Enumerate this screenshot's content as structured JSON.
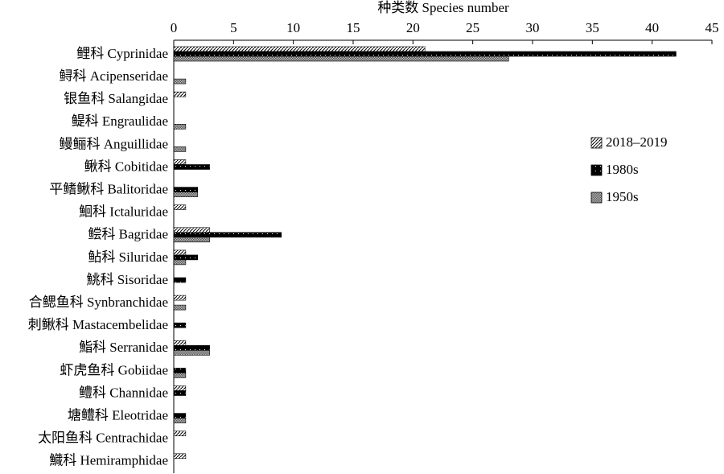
{
  "chart_data": {
    "type": "barh",
    "title": "种类数 Species number",
    "categories": [
      "鲤科 Cyprinidae",
      "鲟科 Acipenseridae",
      "银鱼科 Salangidae",
      "鳀科 Engraulidae",
      "鳗鲡科 Anguillidae",
      "鳅科 Cobitidae",
      "平鳍鳅科 Balitoridae",
      "鮰科 Ictaluridae",
      "鲿科 Bagridae",
      "鲇科 Siluridae",
      "鮡科 Sisoridae",
      "合鳃鱼科 Synbranchidae",
      "刺鳅科 Mastacembelidae",
      "鮨科 Serranidae",
      "虾虎鱼科 Gobiidae",
      "鳢科 Channidae",
      "塘鳢科 Eleotridae",
      "太阳鱼科 Centrachidae",
      "鱵科 Hemiramphidae"
    ],
    "series": [
      {
        "name": "2018–2019",
        "color": "#ffffff",
        "values": [
          21,
          0,
          1,
          0,
          0,
          1,
          0,
          1,
          3,
          1,
          0,
          1,
          0,
          1,
          0,
          1,
          0,
          1,
          1
        ]
      },
      {
        "name": "1980s",
        "color": "#000000",
        "values": [
          42,
          0,
          0,
          0,
          0,
          3,
          2,
          0,
          9,
          2,
          1,
          0,
          1,
          3,
          1,
          1,
          1,
          0,
          0
        ]
      },
      {
        "name": "1950s",
        "color": "#999999",
        "values": [
          28,
          1,
          0,
          1,
          1,
          0,
          2,
          0,
          3,
          1,
          0,
          1,
          0,
          3,
          1,
          0,
          1,
          0,
          0
        ]
      }
    ],
    "xlim": [
      0,
      45
    ],
    "xticks": [
      0,
      5,
      10,
      15,
      20,
      25,
      30,
      35,
      40,
      45
    ]
  }
}
